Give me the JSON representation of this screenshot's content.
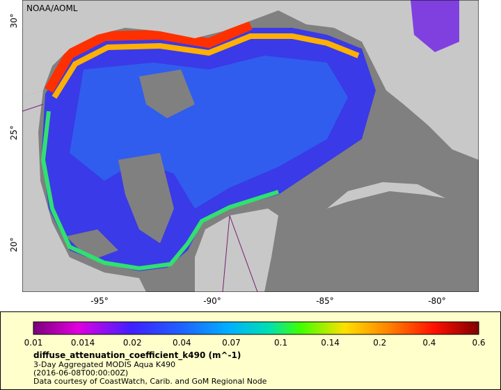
{
  "map": {
    "credit": "NOAA/AOML",
    "lat_labels": [
      "30°",
      "25°",
      "20°"
    ],
    "lon_labels": [
      "-95°",
      "-90°",
      "-85°",
      "-80°"
    ]
  },
  "legend": {
    "ticks": [
      "0.01",
      "0.014",
      "0.02",
      "0.04",
      "0.07",
      "0.1",
      "0.14",
      "0.2",
      "0.4",
      "0.6"
    ],
    "title": "diffuse_attenuation_coefficient_k490 (m^-1)",
    "lines": [
      "3-Day Aggregated MODIS Aqua K490",
      "(2016-06-08T00:00:00Z)",
      "Data courtesy of CoastWatch, Carib. and GoM Regional Node"
    ]
  }
}
